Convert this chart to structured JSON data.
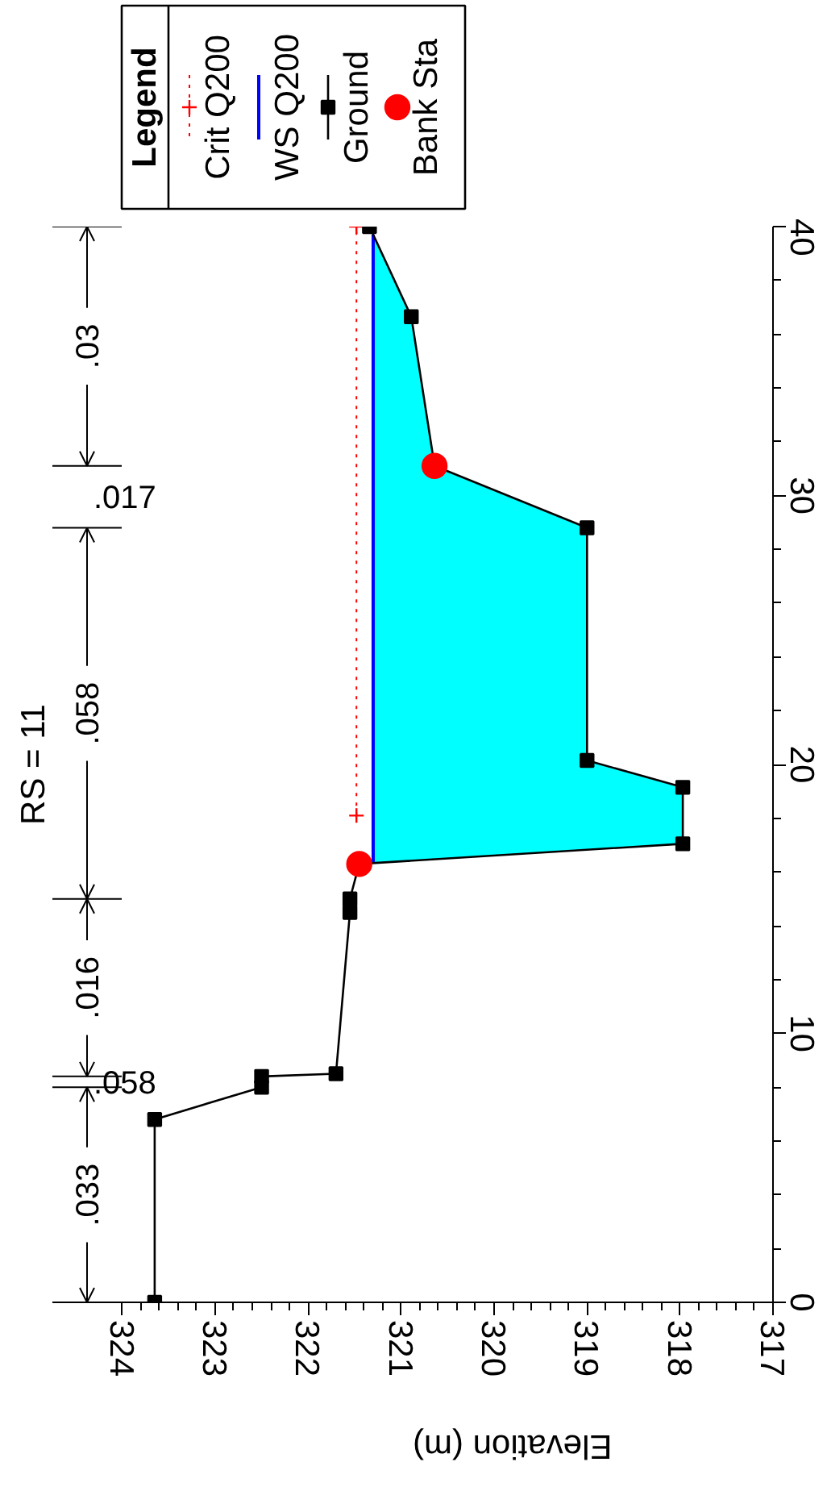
{
  "chart_data": {
    "type": "line",
    "orientation": "horizontal",
    "title": "RS = 11",
    "xlabel": "Elevation (m)",
    "legend_title": "Legend",
    "legend": "top left",
    "xlim": [
      324.75,
      317
    ],
    "xticks": [
      324,
      {
        "value": 323.8,
        "label": null
      },
      {
        "value": 323.6,
        "label": null
      },
      {
        "value": 323.4,
        "label": null
      },
      {
        "value": 323.2,
        "label": null
      },
      323,
      {
        "value": 322.8,
        "label": null
      },
      {
        "value": 322.6,
        "label": null
      },
      {
        "value": 322.4,
        "label": null
      },
      {
        "value": 322.2,
        "label": null
      },
      322,
      {
        "value": 321.8,
        "label": null
      },
      {
        "value": 321.6,
        "label": null
      },
      {
        "value": 321.4,
        "label": null
      },
      {
        "value": 321.2,
        "label": null
      },
      321,
      {
        "value": 320.8,
        "label": null
      },
      {
        "value": 320.6,
        "label": null
      },
      {
        "value": 320.4,
        "label": null
      },
      {
        "value": 320.2,
        "label": null
      },
      320,
      {
        "value": 319.8,
        "label": null
      },
      {
        "value": 319.6,
        "label": null
      },
      {
        "value": 319.4,
        "label": null
      },
      {
        "value": 319.2,
        "label": null
      },
      319,
      {
        "value": 318.8,
        "label": null
      },
      {
        "value": 318.6,
        "label": null
      },
      {
        "value": 318.4,
        "label": null
      },
      {
        "value": 318.2,
        "label": null
      },
      318,
      {
        "value": 317.8,
        "label": null
      },
      {
        "value": 317.6,
        "label": null
      },
      {
        "value": 317.4,
        "label": null
      },
      {
        "value": 317.2,
        "label": null
      },
      317
    ],
    "ylim": [
      0,
      40
    ],
    "yticks": [
      0,
      {
        "value": 2,
        "label": null
      },
      {
        "value": 4,
        "label": null
      },
      {
        "value": 6,
        "label": null
      },
      {
        "value": 8,
        "label": null
      },
      10,
      {
        "value": 12,
        "label": null
      },
      {
        "value": 14,
        "label": null
      },
      {
        "value": 16,
        "label": null
      },
      {
        "value": 18,
        "label": null
      },
      20,
      {
        "value": 22,
        "label": null
      },
      {
        "value": 24,
        "label": null
      },
      {
        "value": 26,
        "label": null
      },
      {
        "value": 28,
        "label": null
      },
      30,
      {
        "value": 32,
        "label": null
      },
      {
        "value": 34,
        "label": null
      },
      {
        "value": 36,
        "label": null
      },
      {
        "value": 38,
        "label": null
      },
      40
    ],
    "series": [
      {
        "name": "Crit Q200",
        "color": "#ff0000",
        "line_style": "dotted",
        "marker": "cross",
        "x": [
          18.1,
          40
        ],
        "values": [
          321.48,
          321.48
        ]
      },
      {
        "name": "WS Q200",
        "color": "#0000ff",
        "x": [
          16.33,
          17.05,
          19.15,
          20.15,
          28.8,
          31.1,
          36.65,
          39.7
        ],
        "values": [
          321.3,
          321.3,
          321.3,
          321.3,
          321.3,
          321.3,
          321.3,
          321.3
        ],
        "lower": [
          321.3,
          317.97,
          317.97,
          319.0,
          319.0,
          320.64,
          320.89,
          321.3
        ],
        "upper": [
          321.3,
          321.3,
          321.3,
          321.3,
          321.3,
          321.3,
          321.3,
          321.3
        ]
      },
      {
        "name": "Ground",
        "color": "#000000",
        "marker": "square",
        "x": [
          0,
          6.8,
          8.0,
          8.4,
          8.5,
          14.5,
          15.0,
          16.3,
          17.05,
          19.15,
          20.15,
          28.8,
          31.1,
          36.65,
          40
        ],
        "values": [
          323.65,
          323.65,
          322.5,
          322.5,
          321.7,
          321.55,
          321.55,
          321.45,
          317.97,
          317.97,
          319.0,
          319.0,
          320.64,
          320.89,
          321.34
        ]
      },
      {
        "name": "Bank Sta",
        "type": "scatter",
        "color": "#ff0000",
        "marker": "circle",
        "x": [
          16.3,
          31.1
        ],
        "values": [
          321.45,
          320.64
        ]
      }
    ],
    "ref_lines": [
      {
        "axis": "y",
        "value": 0
      },
      {
        "axis": "y",
        "value": 8.0
      },
      {
        "axis": "y",
        "value": 8.4
      },
      {
        "axis": "y",
        "value": 15.0
      },
      {
        "axis": "y",
        "value": 28.8
      },
      {
        "axis": "y",
        "value": 31.1
      },
      {
        "axis": "y",
        "value": 40
      }
    ],
    "annotations": [
      {
        "text": ".033",
        "y": 0
      },
      {
        "text": ".058",
        "y": 8.0
      },
      {
        "text": ".016",
        "y": 8.4
      },
      {
        "text": ".058",
        "y": 15.0
      },
      {
        "text": ".017",
        "y": 28.8
      },
      {
        "text": ".03",
        "y": 31.1
      }
    ]
  }
}
